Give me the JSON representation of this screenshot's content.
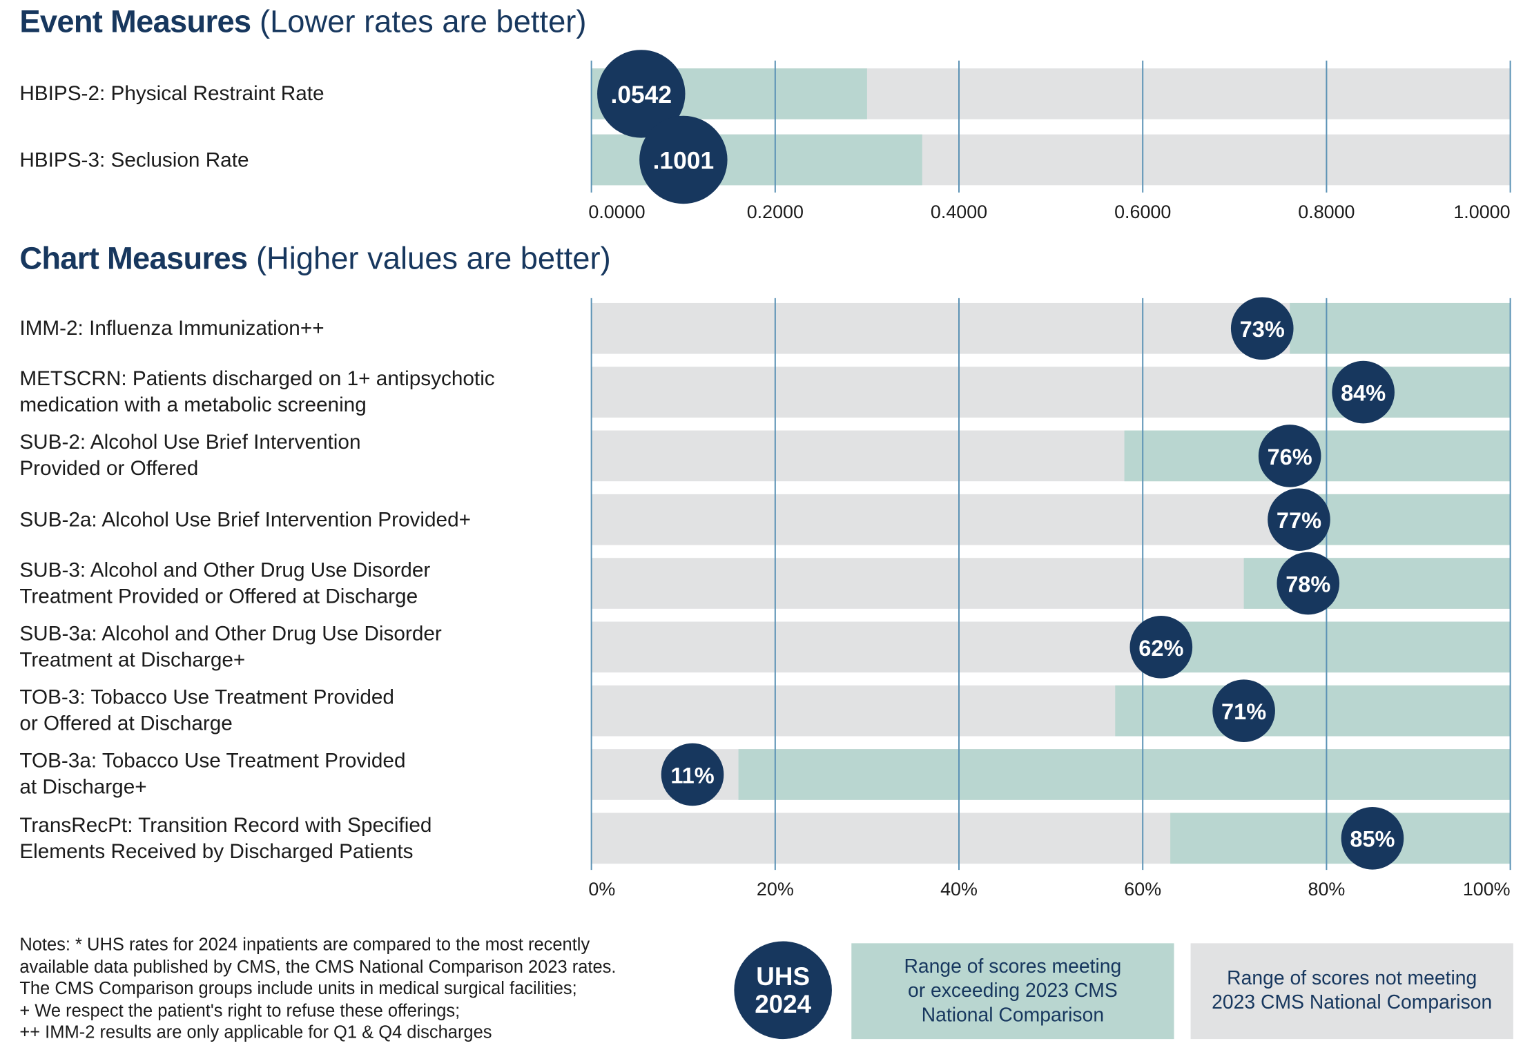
{
  "chart_data": [
    {
      "type": "bar",
      "title": "Event Measures",
      "subtitle": "(Lower rates are better)",
      "categories": [
        "HBIPS-2: Physical Restraint Rate",
        "HBIPS-3: Seclusion Rate"
      ],
      "values": [
        0.0542,
        0.1001
      ],
      "value_labels": [
        ".0542",
        ".1001"
      ],
      "benchmark": [
        0.3,
        0.36
      ],
      "benchmark_side": "below",
      "xlim": [
        0,
        1
      ],
      "xticks": [
        {
          "value": 0,
          "label": "0.0000"
        },
        {
          "value": 0.2,
          "label": "0.2000"
        },
        {
          "value": 0.4,
          "label": "0.4000"
        },
        {
          "value": 0.6,
          "label": "0.6000"
        },
        {
          "value": 0.8,
          "label": "0.8000"
        },
        {
          "value": 1,
          "label": "1.0000"
        }
      ],
      "grid": true,
      "colors": {
        "track": "#e1e2e3",
        "benchmark": "#b9d6d0",
        "dot": "#17375e",
        "grid": "#5b92b5"
      }
    },
    {
      "type": "bar",
      "title": "Chart Measures",
      "subtitle": "(Higher values are better)",
      "categories": [
        "IMM-2: Influenza Immunization++",
        "METSCRN: Patients discharged on 1+ antipsychotic\nmedication with a metabolic screening",
        "SUB-2: Alcohol Use Brief Intervention\nProvided or Offered",
        "SUB-2a: Alcohol Use Brief Intervention Provided+",
        "SUB-3: Alcohol and Other Drug Use Disorder\nTreatment Provided or Offered at Discharge",
        "SUB-3a: Alcohol and Other Drug Use Disorder\nTreatment at Discharge+",
        "TOB-3: Tobacco Use Treatment Provided\nor Offered at Discharge",
        "TOB-3a: Tobacco Use Treatment Provided\nat Discharge+",
        "TransRecPt: Transition Record with Specified\nElements Received by Discharged Patients"
      ],
      "values": [
        73,
        84,
        76,
        77,
        78,
        62,
        71,
        11,
        85
      ],
      "value_labels": [
        "73%",
        "84%",
        "76%",
        "77%",
        "78%",
        "62%",
        "71%",
        "11%",
        "85%"
      ],
      "benchmark": [
        76,
        80,
        58,
        75,
        71,
        61,
        57,
        16,
        63
      ],
      "benchmark_side": "above",
      "xlim": [
        0,
        100
      ],
      "xticks": [
        {
          "value": 0,
          "label": "0%"
        },
        {
          "value": 20,
          "label": "20%"
        },
        {
          "value": 40,
          "label": "40%"
        },
        {
          "value": 60,
          "label": "60%"
        },
        {
          "value": 80,
          "label": "80%"
        },
        {
          "value": 100,
          "label": "100%"
        }
      ],
      "grid": true,
      "colors": {
        "track": "#e1e2e3",
        "benchmark": "#b9d6d0",
        "dot": "#17375e",
        "grid": "#5b92b5"
      }
    }
  ],
  "notes": [
    "Notes: * UHS rates for 2024 inpatients are compared to the most recently",
    "available data published by CMS, the CMS National Comparison 2023 rates.",
    "The CMS Comparison groups include units in medical surgical facilities;",
    "+ We respect the patient's right to refuse these offerings;",
    "++ IMM-2 results are only applicable for Q1 & Q4 discharges"
  ],
  "legend": {
    "uhs": "UHS\n2024",
    "meeting": "Range of scores meeting\nor exceeding 2023 CMS\nNational Comparison",
    "not_meeting": "Range of scores not meeting\n2023 CMS National Comparison"
  }
}
